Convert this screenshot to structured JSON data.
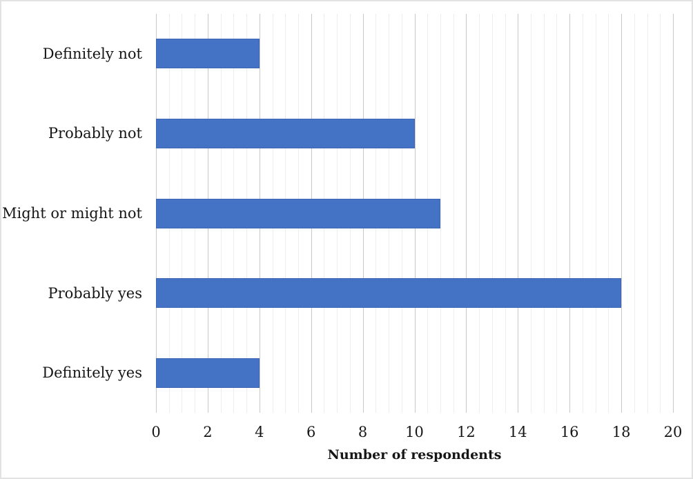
{
  "chart_data": {
    "type": "bar",
    "orientation": "horizontal",
    "title": "",
    "categories": [
      "Definitely not",
      "Probably not",
      "Might or might not",
      "Probably yes",
      "Definitely yes"
    ],
    "values": [
      4,
      10,
      11,
      18,
      4
    ],
    "xlabel": "Number of respondents",
    "ylabel": "",
    "xlim": [
      0,
      20
    ],
    "x_ticks": [
      0,
      2,
      4,
      6,
      8,
      10,
      12,
      14,
      16,
      18,
      20
    ],
    "major_unit": 2,
    "minor_unit": 0.5,
    "grid": "vertical, minor and major lines",
    "legend": "none",
    "bar_color": "#4472C4",
    "colors": {
      "bar_fill": "#4472C4",
      "major_gridline": "#c8c8c8",
      "minor_gridline": "#ededed",
      "text": "#161616",
      "figure_border": "#e2e2e2"
    }
  }
}
